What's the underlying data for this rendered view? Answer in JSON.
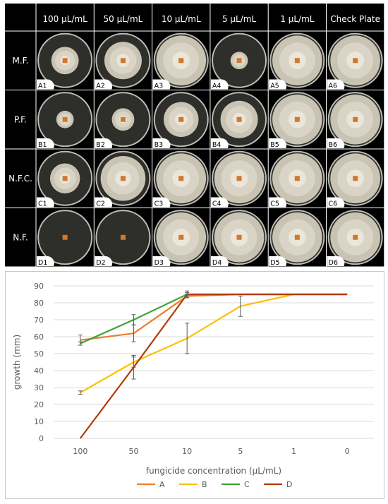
{
  "grid": {
    "columns": [
      "100 µL/mL",
      "50 µL/mL",
      "10 µL/mL",
      "5 µL/mL",
      "1 µL/mL",
      "Check Plate"
    ],
    "rows": [
      {
        "label": "M.F.",
        "cells": [
          "A1",
          "A2",
          "A3",
          "A4",
          "A5",
          "A6"
        ]
      },
      {
        "label": "P.F.",
        "cells": [
          "B1",
          "B2",
          "B3",
          "B4",
          "B5",
          "B6"
        ]
      },
      {
        "label": "N.F.C.",
        "cells": [
          "C1",
          "C2",
          "C3",
          "C4",
          "C5",
          "C6"
        ]
      },
      {
        "label": "N.F.",
        "cells": [
          "D1",
          "D2",
          "D3",
          "D4",
          "D5",
          "D6"
        ]
      }
    ]
  },
  "plate_growth": [
    [
      0.55,
      0.75,
      1.0,
      0.35,
      1.0,
      1.0
    ],
    [
      0.35,
      0.45,
      0.7,
      0.75,
      1.0,
      1.0
    ],
    [
      0.6,
      0.9,
      1.0,
      1.0,
      1.0,
      1.0
    ],
    [
      0.0,
      0.0,
      1.0,
      1.0,
      1.0,
      1.0
    ]
  ],
  "chart_data": {
    "type": "line",
    "categories": [
      "100",
      "50",
      "10",
      "5",
      "1",
      "0"
    ],
    "xlabel": "fungicide concentration (µL/mL)",
    "ylabel": "growth (mm)",
    "ylim": [
      0,
      90
    ],
    "yticks": [
      0,
      10,
      20,
      30,
      40,
      50,
      60,
      70,
      80,
      90
    ],
    "grid": true,
    "legend": "bottom",
    "series": [
      {
        "name": "A",
        "color": "#ED7D31",
        "values": [
          58,
          62,
          84,
          85,
          85,
          85
        ],
        "errors": [
          3,
          5,
          1,
          0,
          0,
          0
        ]
      },
      {
        "name": "B",
        "color": "#FFC000",
        "values": [
          27,
          45,
          59,
          78,
          85,
          85
        ],
        "errors": [
          1,
          3,
          9,
          6,
          0,
          0
        ]
      },
      {
        "name": "C",
        "color": "#41A335",
        "values": [
          56,
          70,
          85,
          85,
          85,
          85
        ],
        "errors": [
          1,
          3,
          1,
          0,
          0,
          0
        ]
      },
      {
        "name": "D",
        "color": "#B23B0A",
        "values": [
          0,
          42,
          85,
          85,
          85,
          85
        ],
        "errors": [
          0,
          7,
          2,
          0,
          0,
          0
        ]
      }
    ]
  }
}
